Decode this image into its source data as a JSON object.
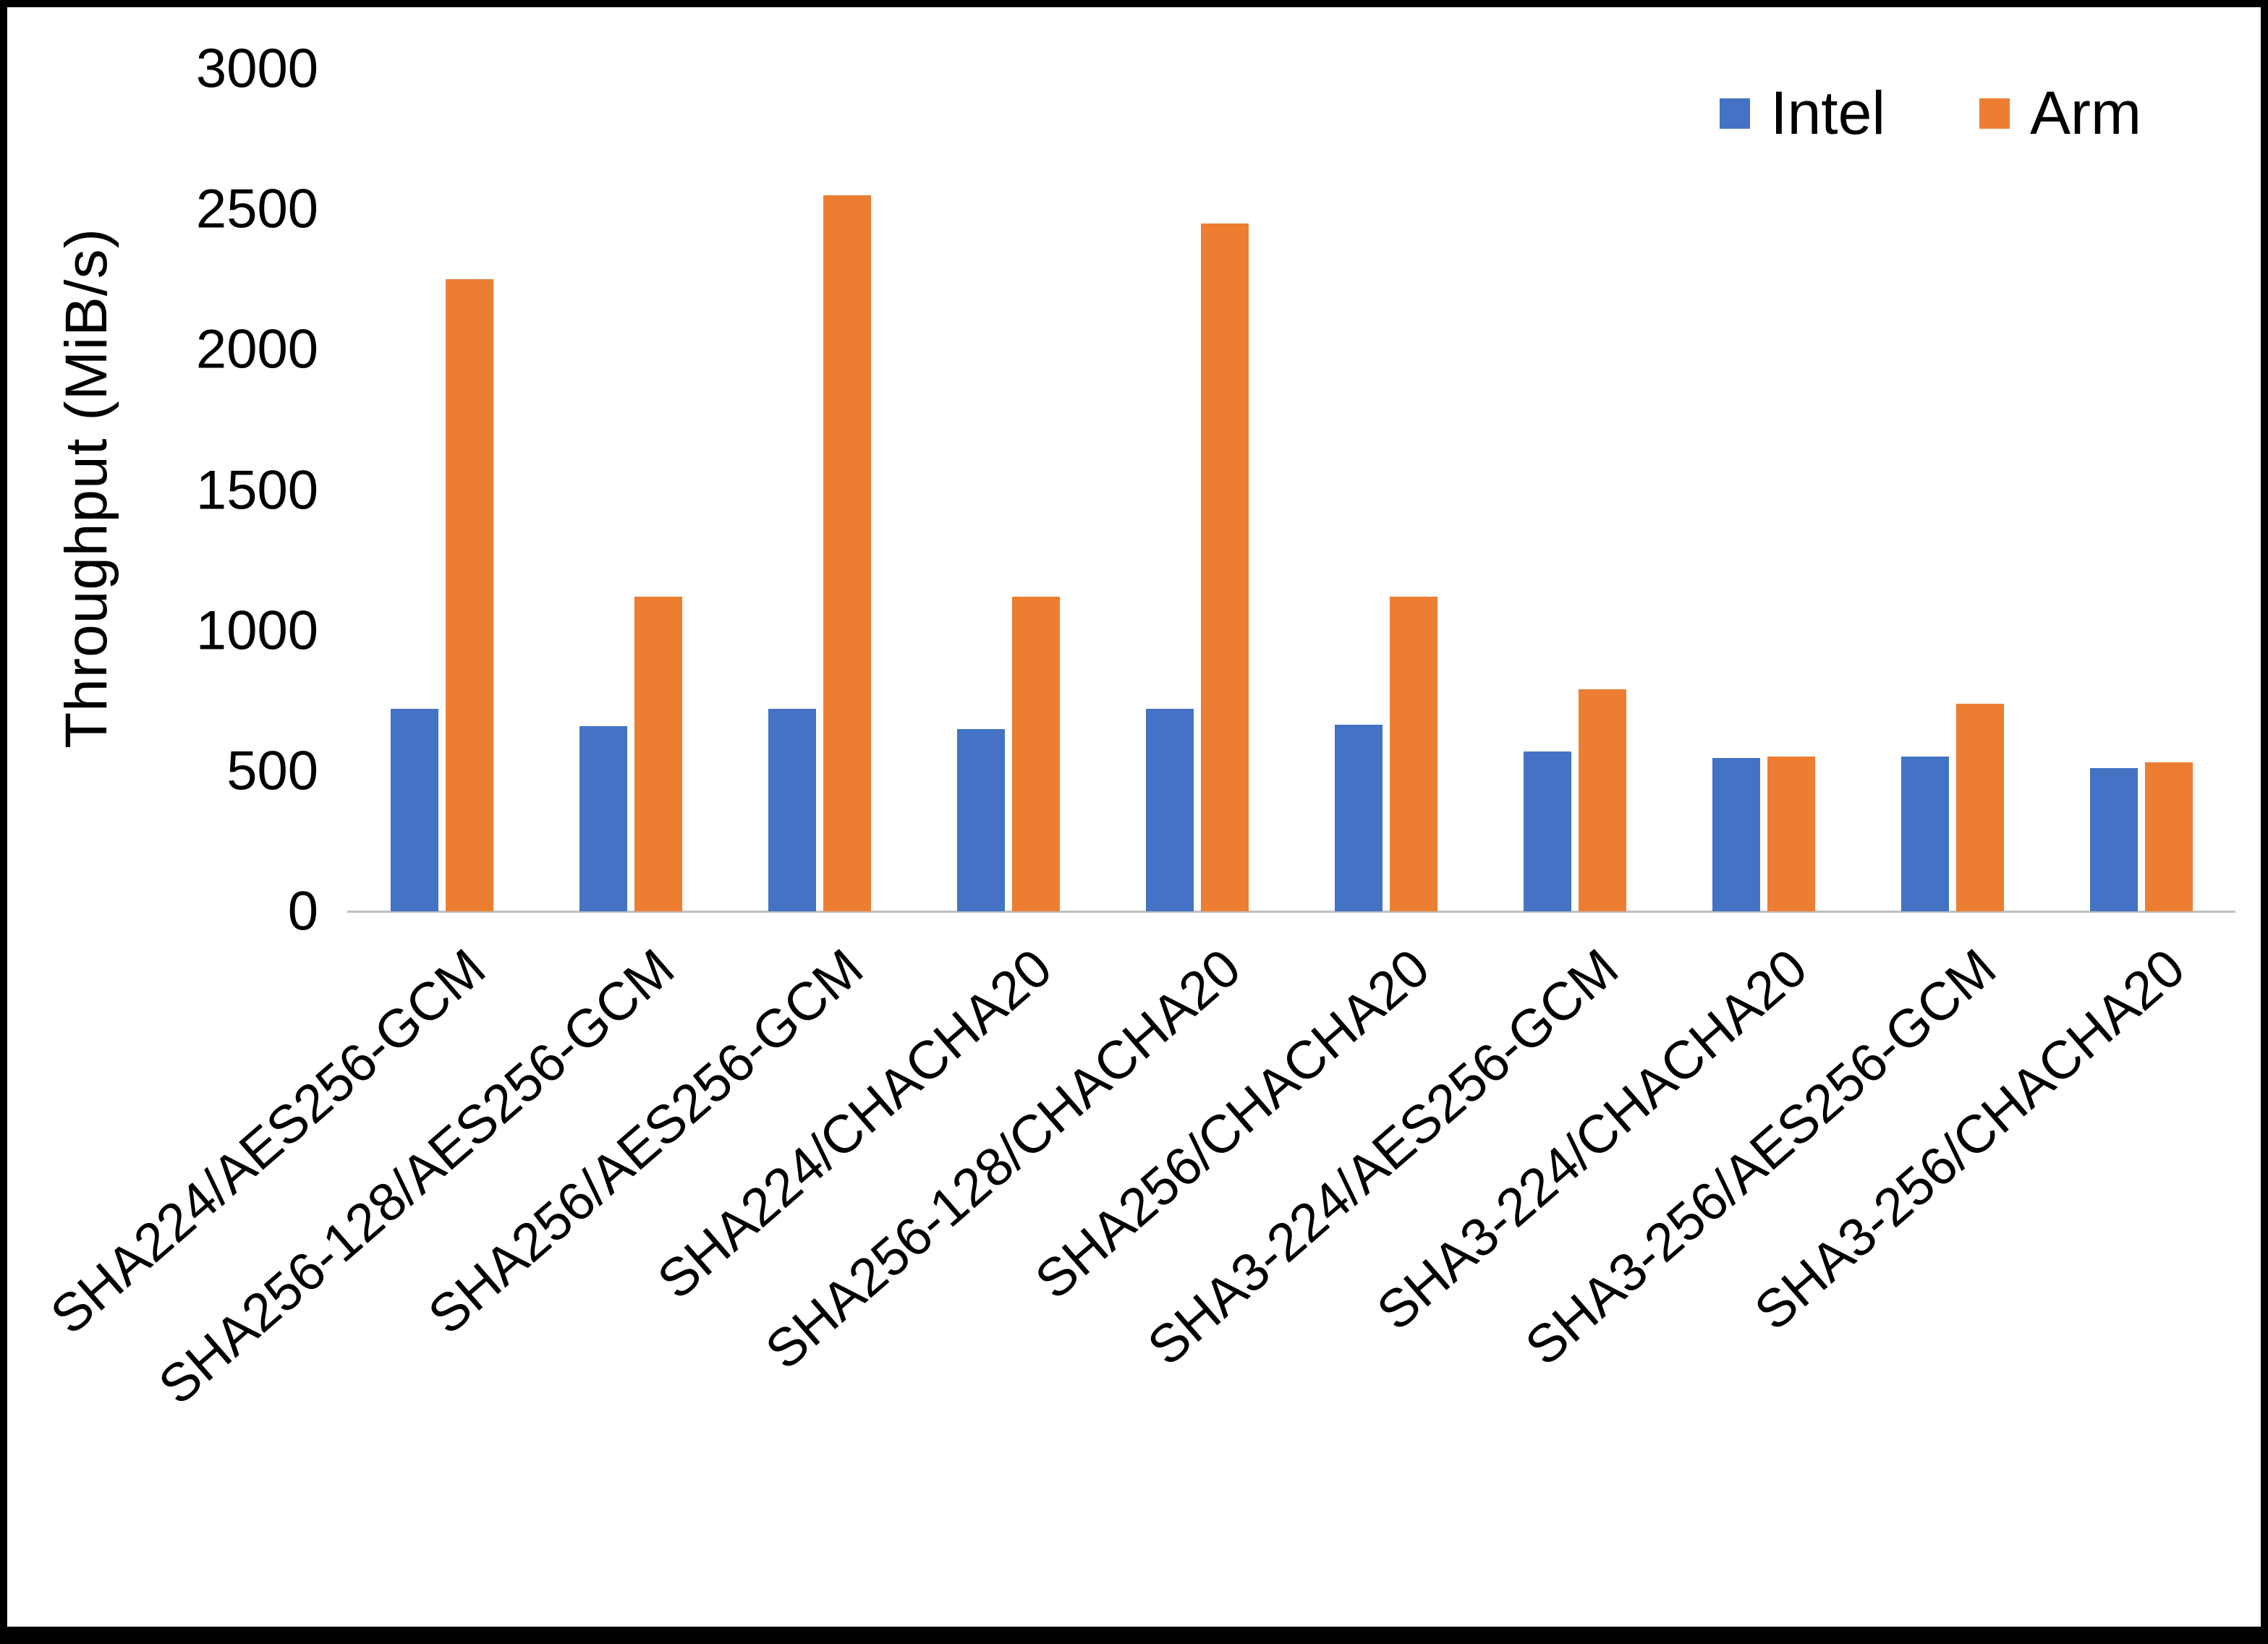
{
  "chart_data": {
    "type": "bar",
    "title": "",
    "xlabel": "",
    "ylabel": "Throughput (MiB/s)",
    "ylim": [
      0,
      3000
    ],
    "ytick_step": 500,
    "grid": false,
    "legend_position": "top-right",
    "categories": [
      "SHA224/AES256-GCM",
      "SHA256-128/AES256-GCM",
      "SHA256/AES256-GCM",
      "SHA224/CHACHA20",
      "SHA256-128/CHACHA20",
      "SHA256/CHACHA20",
      "SHA3-224/AES256-GCM",
      "SHA3-224/CHACHA20",
      "SHA3-256/AES256-GCM",
      "SHA3-256/CHACHA20"
    ],
    "series": [
      {
        "name": "Intel",
        "color": "#4472C4",
        "values": [
          720,
          660,
          720,
          650,
          720,
          665,
          570,
          545,
          550,
          510
        ]
      },
      {
        "name": "Arm",
        "color": "#ED7D31",
        "values": [
          2250,
          1120,
          2550,
          1120,
          2450,
          1120,
          790,
          550,
          740,
          530
        ]
      }
    ]
  }
}
